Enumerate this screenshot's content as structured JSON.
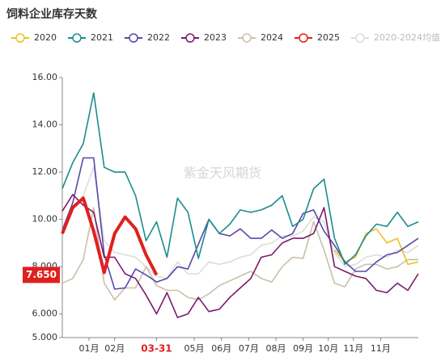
{
  "chart_data": {
    "type": "line",
    "title": "饲料企业库存天数",
    "watermark": "紫金天风期货",
    "x": [
      0,
      1,
      2,
      3,
      4,
      5,
      6,
      7,
      8,
      9,
      10,
      11,
      12,
      13,
      14,
      15,
      16,
      17,
      18,
      19,
      20,
      21,
      22,
      23,
      24,
      25,
      26,
      27,
      28,
      29,
      30,
      31,
      32,
      33,
      34
    ],
    "xlim": [
      0,
      34
    ],
    "xticks": [
      {
        "value": 2.55,
        "label": "01月"
      },
      {
        "value": 5.0,
        "label": "02月"
      },
      {
        "value": 9.0,
        "label": "03-31"
      },
      {
        "value": 12.6,
        "label": "05月"
      },
      {
        "value": 15.2,
        "label": "06月"
      },
      {
        "value": 17.8,
        "label": "07月"
      },
      {
        "value": 20.4,
        "label": "08月"
      },
      {
        "value": 23.0,
        "label": "09月"
      },
      {
        "value": 25.4,
        "label": "10月"
      },
      {
        "value": 27.8,
        "label": "11月"
      },
      {
        "value": 30.4,
        "label": "11月"
      }
    ],
    "highlight_xtick": 2,
    "highlight_color": "#e0201f",
    "ylim": [
      5,
      16
    ],
    "yticks": [
      {
        "value": 5,
        "label": "5.000"
      },
      {
        "value": 6,
        "label": "6.000"
      },
      {
        "value": 8,
        "label": "8.000"
      },
      {
        "value": 10,
        "label": "10.00"
      },
      {
        "value": 12,
        "label": "12.00"
      },
      {
        "value": 14,
        "label": "14.00"
      },
      {
        "value": 16,
        "label": "16.00"
      }
    ],
    "grid": false,
    "series": [
      {
        "name": "2020",
        "color": "#f0c020",
        "values": [
          null,
          null,
          null,
          null,
          null,
          null,
          null,
          null,
          null,
          null,
          null,
          null,
          null,
          null,
          null,
          null,
          null,
          null,
          null,
          null,
          null,
          null,
          null,
          null,
          null,
          null,
          8.7,
          8.2,
          8.4,
          9.4,
          9.6,
          9.0,
          9.2,
          8.1,
          8.2
        ]
      },
      {
        "name": "2021",
        "color": "#1b8c8c",
        "values": [
          11.3,
          12.4,
          13.2,
          15.35,
          12.2,
          12.0,
          12.0,
          11.0,
          9.1,
          9.9,
          8.4,
          10.9,
          10.3,
          8.35,
          10.0,
          9.4,
          9.8,
          10.4,
          10.3,
          10.4,
          10.6,
          11.0,
          9.7,
          10.0,
          11.3,
          11.7,
          9.2,
          8.1,
          8.5,
          9.3,
          9.8,
          9.7,
          10.3,
          9.7,
          9.9
        ]
      },
      {
        "name": "2022",
        "color": "#5848a8",
        "values": [
          9.55,
          10.7,
          12.6,
          12.6,
          8.5,
          7.05,
          7.1,
          7.9,
          7.65,
          7.35,
          7.5,
          8.0,
          7.9,
          8.95,
          10.0,
          9.4,
          9.3,
          9.6,
          9.2,
          9.2,
          9.55,
          9.2,
          9.4,
          10.25,
          10.4,
          9.5,
          8.9,
          8.2,
          7.8,
          7.8,
          8.2,
          8.5,
          8.6,
          8.9,
          9.2
        ]
      },
      {
        "name": "2023",
        "color": "#7a1a6c",
        "values": [
          10.35,
          11.05,
          10.6,
          10.3,
          8.4,
          8.4,
          7.7,
          7.5,
          6.8,
          6.0,
          6.9,
          5.85,
          6.0,
          6.7,
          6.1,
          6.2,
          6.7,
          7.1,
          7.5,
          8.4,
          8.5,
          9.0,
          9.2,
          9.2,
          9.4,
          10.5,
          8.0,
          7.8,
          7.6,
          7.5,
          7.0,
          6.9,
          7.3,
          7.0,
          7.7
        ]
      },
      {
        "name": "2024",
        "color": "#cbbfa8",
        "values": [
          7.3,
          7.5,
          8.3,
          10.5,
          7.3,
          6.6,
          7.1,
          7.1,
          8.0,
          7.2,
          7.0,
          7.0,
          6.7,
          6.6,
          6.85,
          7.2,
          7.4,
          7.6,
          7.8,
          7.5,
          7.35,
          8.0,
          8.4,
          8.35,
          9.9,
          8.7,
          7.3,
          7.15,
          7.9,
          8.1,
          8.1,
          7.9,
          8.0,
          8.3,
          8.3
        ]
      },
      {
        "name": "2025",
        "color": "#e0201f",
        "width": 4,
        "values": [
          9.4,
          10.5,
          10.9,
          9.5,
          7.75,
          9.4,
          10.1,
          9.6,
          8.5,
          7.65,
          null,
          null,
          null,
          null,
          null,
          null,
          null,
          null,
          null,
          null,
          null,
          null,
          null,
          null,
          null,
          null,
          null,
          null,
          null,
          null,
          null,
          null,
          null,
          null,
          null
        ],
        "value_labels": [
          null,
          null,
          null,
          null,
          null,
          null,
          null,
          null,
          null,
          "7.650",
          null,
          null,
          null,
          null,
          null,
          null,
          null,
          null,
          null,
          null,
          null,
          null,
          null,
          null,
          null,
          null,
          null,
          null,
          null,
          null,
          null,
          null,
          null,
          null,
          null
        ]
      },
      {
        "name": "2020-2024均值",
        "color": "#dcdcdc",
        "values": [
          9.6,
          10.4,
          11.0,
          12.2,
          9.1,
          8.6,
          8.5,
          8.4,
          8.0,
          7.6,
          7.5,
          8.2,
          7.7,
          7.7,
          8.2,
          8.1,
          8.2,
          8.4,
          8.5,
          8.9,
          9.0,
          9.3,
          9.3,
          9.5,
          10.1,
          9.9,
          8.6,
          8.0,
          8.1,
          8.4,
          8.5,
          8.4,
          8.7,
          8.6,
          8.9
        ]
      }
    ]
  }
}
